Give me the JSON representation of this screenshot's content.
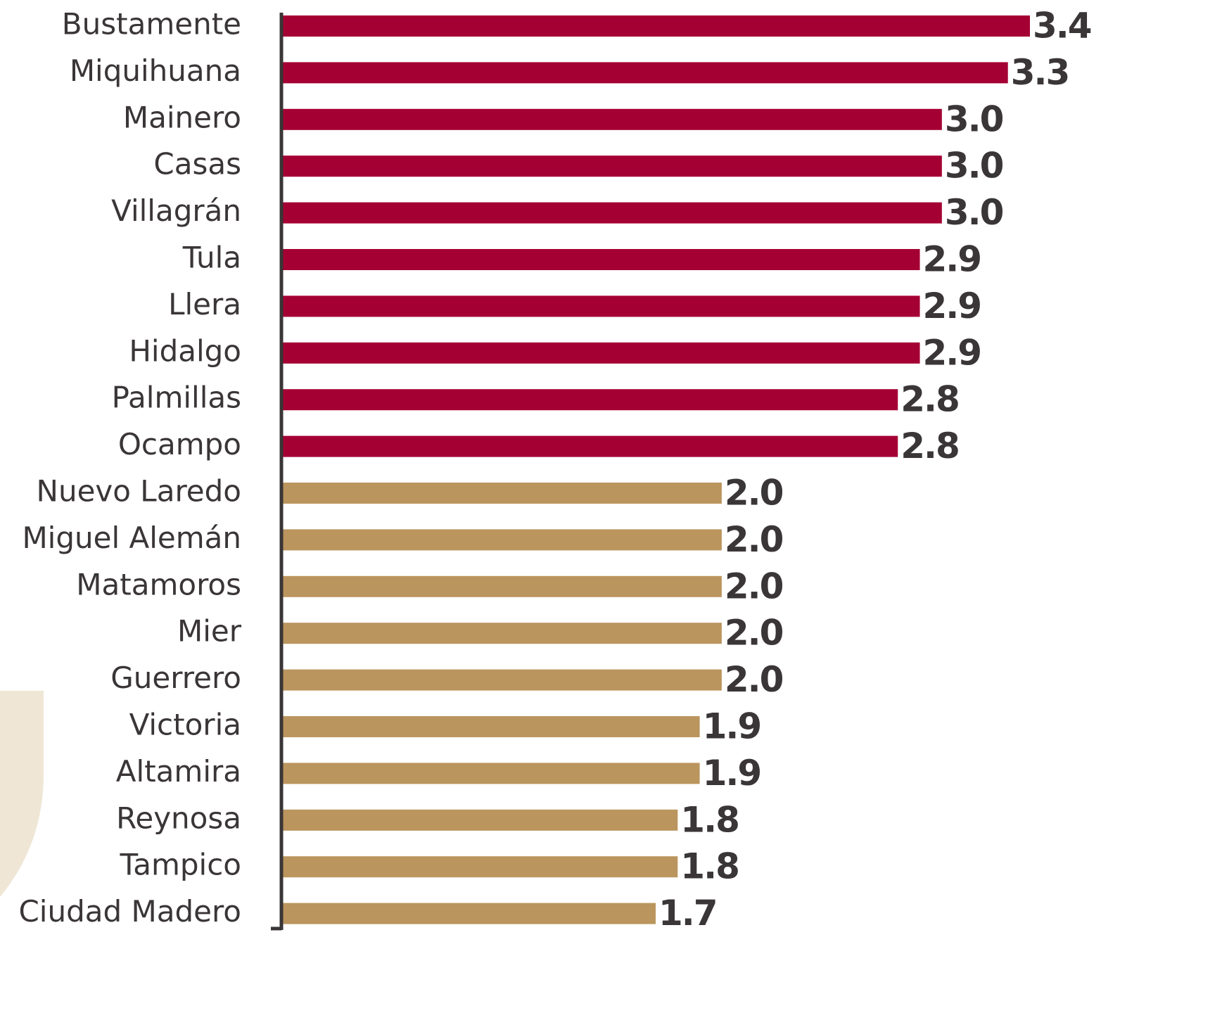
{
  "chart_data": {
    "type": "bar",
    "orientation": "horizontal",
    "categories": [
      "Bustamente",
      "Miquihuana",
      "Mainero",
      "Casas",
      "Villagrán",
      "Tula",
      "Llera",
      "Hidalgo",
      "Palmillas",
      "Ocampo",
      "Nuevo Laredo",
      "Miguel Alemán",
      "Matamoros",
      "Mier",
      "Guerrero",
      "Victoria",
      "Altamira",
      "Reynosa",
      "Tampico",
      "Ciudad Madero"
    ],
    "values": [
      3.4,
      3.3,
      3.0,
      3.0,
      3.0,
      2.9,
      2.9,
      2.9,
      2.8,
      2.8,
      2.0,
      2.0,
      2.0,
      2.0,
      2.0,
      1.9,
      1.9,
      1.8,
      1.8,
      1.7
    ],
    "value_labels": [
      "3.4",
      "3.3",
      "3.0",
      "3.0",
      "3.0",
      "2.9",
      "2.9",
      "2.9",
      "2.8",
      "2.8",
      "2.0",
      "2.0",
      "2.0",
      "2.0",
      "2.0",
      "1.9",
      "1.9",
      "1.8",
      "1.8",
      "1.7"
    ],
    "colors": [
      "#a50034",
      "#a50034",
      "#a50034",
      "#a50034",
      "#a50034",
      "#a50034",
      "#a50034",
      "#a50034",
      "#a50034",
      "#a50034",
      "#bb955e",
      "#bb955e",
      "#bb955e",
      "#bb955e",
      "#bb955e",
      "#bb955e",
      "#bb955e",
      "#bb955e",
      "#bb955e",
      "#bb955e"
    ]
  }
}
